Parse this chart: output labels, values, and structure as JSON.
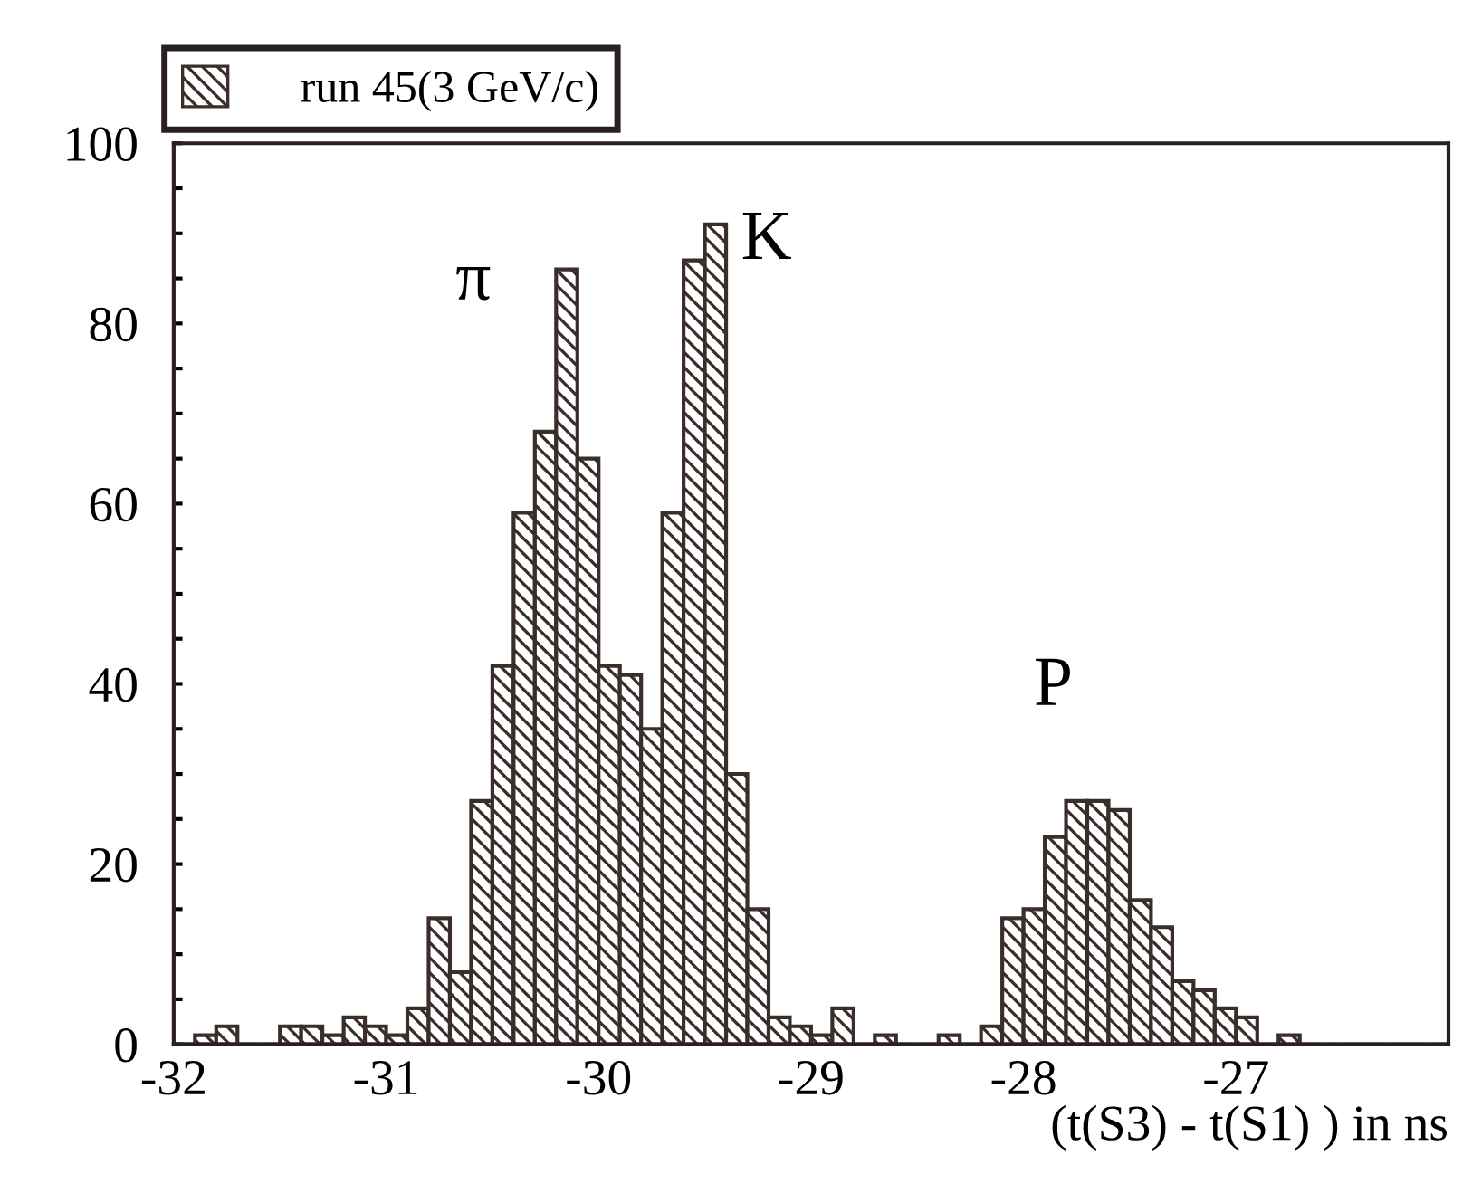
{
  "chart_data": {
    "type": "histogram",
    "bins": [
      -32.0,
      -31.9,
      -31.8,
      -31.7,
      -31.6,
      -31.5,
      -31.4,
      -31.3,
      -31.2,
      -31.1,
      -31.0,
      -30.9,
      -30.8,
      -30.7,
      -30.6,
      -30.5,
      -30.4,
      -30.3,
      -30.2,
      -30.1,
      -30.0,
      -29.9,
      -29.8,
      -29.7,
      -29.6,
      -29.5,
      -29.4,
      -29.3,
      -29.2,
      -29.1,
      -29.0,
      -28.9,
      -28.8,
      -28.7,
      -28.6,
      -28.5,
      -28.4,
      -28.3,
      -28.2,
      -28.1,
      -28.0,
      -27.9,
      -27.8,
      -27.7,
      -27.6,
      -27.5,
      -27.4,
      -27.3,
      -27.2,
      -27.1,
      -27.0,
      -26.9,
      -26.8,
      -26.7,
      -26.6,
      -26.5,
      -26.4,
      -26.3,
      -26.2,
      -26.1,
      -26.0
    ],
    "series": [
      {
        "name": "run 45(3 GeV/c)",
        "color": "#3a2e2a",
        "values": [
          0,
          1,
          2,
          0,
          0,
          2,
          2,
          1,
          3,
          2,
          1,
          4,
          14,
          8,
          27,
          42,
          59,
          68,
          86,
          65,
          42,
          41,
          35,
          59,
          87,
          91,
          30,
          15,
          3,
          2,
          1,
          4,
          0,
          1,
          0,
          0,
          1,
          0,
          2,
          14,
          15,
          23,
          27,
          27,
          26,
          16,
          13,
          7,
          6,
          4,
          3,
          0,
          1,
          0,
          0,
          0,
          0,
          0,
          0,
          0
        ]
      }
    ],
    "xlabel": "(t(S3) - t(S1) ) in ns",
    "xlim": [
      -32,
      -26
    ],
    "xticks": [
      -32,
      -31,
      -30,
      -29,
      -28,
      -27
    ],
    "ylim": [
      0,
      100
    ],
    "yticks": [
      0,
      {
        "value": 5,
        "label": null
      },
      {
        "value": 10,
        "label": null
      },
      {
        "value": 15,
        "label": null
      },
      20,
      {
        "value": 25,
        "label": null
      },
      {
        "value": 30,
        "label": null
      },
      {
        "value": 35,
        "label": null
      },
      40,
      {
        "value": 45,
        "label": null
      },
      {
        "value": 50,
        "label": null
      },
      {
        "value": 55,
        "label": null
      },
      60,
      {
        "value": 65,
        "label": null
      },
      {
        "value": 70,
        "label": null
      },
      {
        "value": 75,
        "label": null
      },
      80,
      {
        "value": 85,
        "label": null
      },
      {
        "value": 90,
        "label": null
      },
      {
        "value": 95,
        "label": null
      },
      100
    ],
    "annotations": [
      "π",
      "K",
      "P"
    ],
    "legend": "top left",
    "grid": false
  }
}
